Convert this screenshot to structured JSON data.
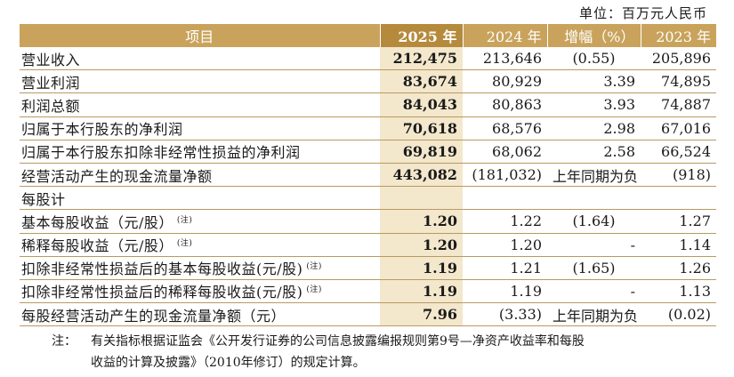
{
  "unit": "单位：百万元人民币",
  "headers": [
    "项目",
    "2025 年",
    "2024 年",
    "增幅（%）",
    "2023 年"
  ],
  "rows": [
    {
      "label": "营业收入",
      "note": "",
      "v2025": "212,475",
      "v2024": "213,646",
      "growth": "(0.55)",
      "v2023": "205,896"
    },
    {
      "label": "营业利润",
      "note": "",
      "v2025": "83,674",
      "v2024": "80,929",
      "growth": "3.39",
      "v2023": "74,895"
    },
    {
      "label": "利润总额",
      "note": "",
      "v2025": "84,043",
      "v2024": "80,863",
      "growth": "3.93",
      "v2023": "74,887"
    },
    {
      "label": "归属于本行股东的净利润",
      "note": "",
      "v2025": "70,618",
      "v2024": "68,576",
      "growth": "2.98",
      "v2023": "67,016"
    },
    {
      "label": "归属于本行股东扣除非经常性损益的净利润",
      "note": "",
      "v2025": "69,819",
      "v2024": "68,062",
      "growth": "2.58",
      "v2023": "66,524"
    },
    {
      "label": "经营活动产生的现金流量净额",
      "note": "",
      "v2025": "443,082",
      "v2024": "(181,032)",
      "growth": "上年同期为负",
      "v2023": "(918)"
    },
    {
      "label": "每股计",
      "note": "",
      "v2025": "",
      "v2024": "",
      "growth": "",
      "v2023": ""
    },
    {
      "label": "基本每股收益（元/股）",
      "note": "(注)",
      "v2025": "1.20",
      "v2024": "1.22",
      "growth": "(1.64)",
      "v2023": "1.27"
    },
    {
      "label": "稀释每股收益（元/股）",
      "note": "(注)",
      "v2025": "1.20",
      "v2024": "1.20",
      "growth": "-",
      "v2023": "1.14"
    },
    {
      "label": "扣除非经常性损益后的基本每股收益(元/股)",
      "note": "(注)",
      "v2025": "1.19",
      "v2024": "1.21",
      "growth": "(1.65)",
      "v2023": "1.26"
    },
    {
      "label": "扣除非经常性损益后的稀释每股收益(元/股)",
      "note": "(注)",
      "v2025": "1.19",
      "v2024": "1.19",
      "growth": "-",
      "v2023": "1.13"
    },
    {
      "label": "每股经营活动产生的现金流量净额（元）",
      "note": "",
      "v2025": "7.96",
      "v2024": "(3.33)",
      "growth": "上年同期为负",
      "v2023": "(0.02)"
    }
  ],
  "footnote": {
    "lead": "注：",
    "line1": "有关指标根据证监会《公开发行证券的公司信息披露编报规则第9号—净资产收益率和每股",
    "line2": "收益的计算及披露》（2010年修订）的规定计算。"
  }
}
